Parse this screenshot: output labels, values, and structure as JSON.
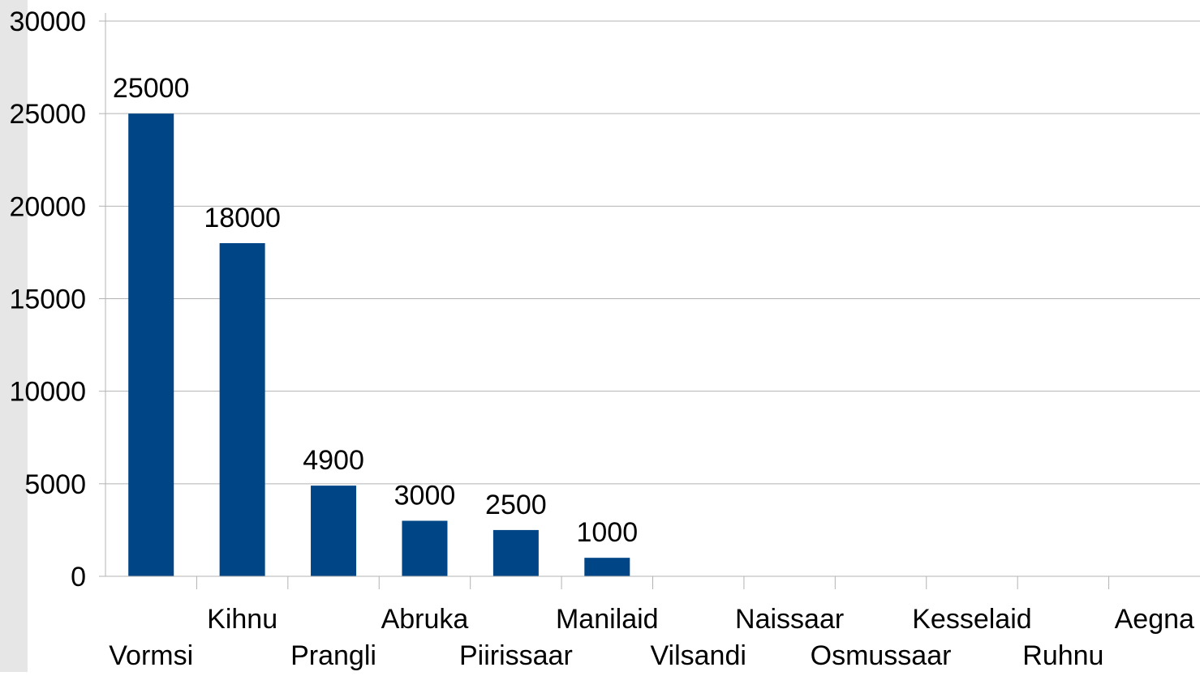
{
  "chart_data": {
    "type": "bar",
    "categories": [
      "Vormsi",
      "Kihnu",
      "Prangli",
      "Abruka",
      "Piirissaar",
      "Manilaid",
      "Vilsandi",
      "Naissaar",
      "Osmussaar",
      "Kesselaid",
      "Ruhnu",
      "Aegna"
    ],
    "series": [
      {
        "values": [
          25000,
          18000,
          4900,
          3000,
          2500,
          1000,
          null,
          null,
          null,
          null,
          null,
          null
        ]
      }
    ],
    "data_labels": [
      "25000",
      "18000",
      "4900",
      "3000",
      "2500",
      "1000",
      "",
      "",
      "",
      "",
      "",
      ""
    ],
    "y_ticks": [
      "0",
      "5000",
      "10000",
      "15000",
      "20000",
      "25000",
      "30000"
    ],
    "ylim": [
      0,
      30000
    ],
    "grid": true,
    "legend": "none",
    "colors": {
      "bar": "#004586",
      "grid": "#b3b3b3",
      "axis": "#b3b3b3",
      "background": "#ffffff",
      "side_stripe": "#e6e6e6"
    }
  }
}
